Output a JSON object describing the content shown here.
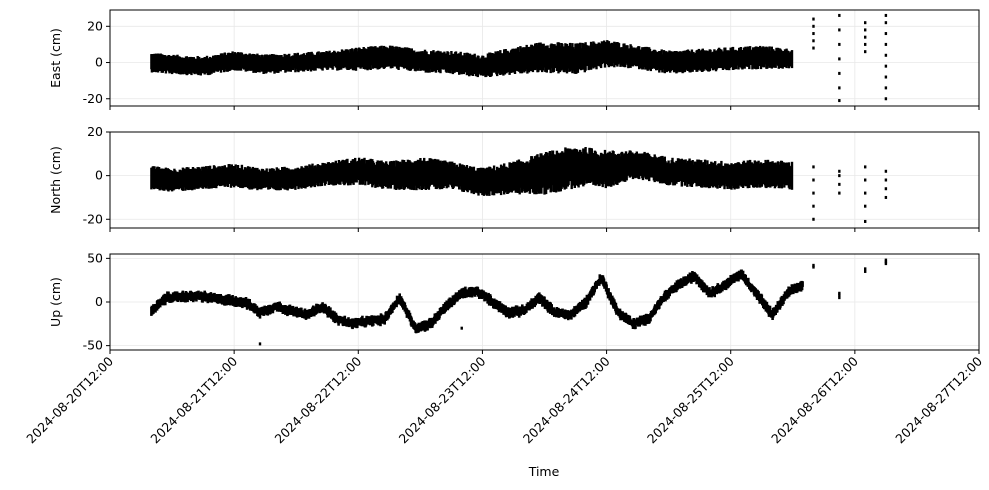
{
  "chart_data": {
    "type": "scatter",
    "xlabel": "Time",
    "x_ticks": [
      "2024-08-20T12:00",
      "2024-08-21T12:00",
      "2024-08-22T12:00",
      "2024-08-23T12:00",
      "2024-08-24T12:00",
      "2024-08-25T12:00",
      "2024-08-26T12:00",
      "2024-08-27T12:00"
    ],
    "xlim": [
      "2024-08-20T12:00",
      "2024-08-27T12:00"
    ],
    "grid": true,
    "marker_color": "#000000",
    "panels": [
      {
        "ylabel": "East (cm)",
        "ylim": [
          -24,
          29
        ],
        "yticks": [
          -20,
          0,
          20
        ],
        "series": [
          {
            "x": [
              "2024-08-20T20:00",
              "2024-08-21T00:00",
              "2024-08-21T06:00",
              "2024-08-21T12:00",
              "2024-08-21T18:00",
              "2024-08-22T00:00",
              "2024-08-22T06:00",
              "2024-08-22T12:00",
              "2024-08-22T18:00",
              "2024-08-23T00:00",
              "2024-08-23T06:00",
              "2024-08-23T12:00",
              "2024-08-23T18:00",
              "2024-08-24T00:00",
              "2024-08-24T06:00",
              "2024-08-24T12:00",
              "2024-08-24T18:00",
              "2024-08-25T00:00",
              "2024-08-25T06:00",
              "2024-08-25T12:00",
              "2024-08-25T18:00",
              "2024-08-26T00:00"
            ],
            "center": [
              0,
              -1,
              -2,
              1,
              -1,
              0,
              1,
              2,
              3,
              1,
              0,
              -2,
              1,
              3,
              2,
              5,
              3,
              0,
              1,
              2,
              3,
              2
            ],
            "spread": [
              5,
              5,
              5,
              5,
              5,
              5,
              5,
              6,
              6,
              6,
              6,
              6,
              7,
              8,
              8,
              7,
              6,
              6,
              6,
              6,
              6,
              5
            ]
          }
        ],
        "sparse_tail": [
          {
            "x": "2024-08-26T04:00",
            "y": [
              8,
              12,
              16,
              20,
              24
            ]
          },
          {
            "x": "2024-08-26T09:00",
            "y": [
              -21,
              -14,
              -6,
              2,
              10,
              18,
              26
            ]
          },
          {
            "x": "2024-08-26T14:00",
            "y": [
              6,
              10,
              14,
              18,
              22
            ]
          },
          {
            "x": "2024-08-26T18:00",
            "y": [
              -20,
              -14,
              -8,
              -2,
              4,
              10,
              16,
              22,
              26
            ]
          }
        ]
      },
      {
        "ylabel": "North (cm)",
        "ylim": [
          -24,
          20
        ],
        "yticks": [
          -20,
          0,
          20
        ],
        "series": [
          {
            "x": [
              "2024-08-20T20:00",
              "2024-08-21T00:00",
              "2024-08-21T06:00",
              "2024-08-21T12:00",
              "2024-08-21T18:00",
              "2024-08-22T00:00",
              "2024-08-22T06:00",
              "2024-08-22T12:00",
              "2024-08-22T18:00",
              "2024-08-23T00:00",
              "2024-08-23T06:00",
              "2024-08-23T12:00",
              "2024-08-23T18:00",
              "2024-08-24T00:00",
              "2024-08-24T06:00",
              "2024-08-24T12:00",
              "2024-08-24T18:00",
              "2024-08-25T00:00",
              "2024-08-25T06:00",
              "2024-08-25T12:00",
              "2024-08-25T18:00",
              "2024-08-26T00:00"
            ],
            "center": [
              -1,
              -2,
              -1,
              0,
              -2,
              -1,
              1,
              2,
              0,
              1,
              0,
              -3,
              -1,
              1,
              4,
              3,
              5,
              2,
              1,
              0,
              1,
              0
            ],
            "spread": [
              5,
              5,
              5,
              5,
              5,
              5,
              5,
              6,
              6,
              7,
              6,
              6,
              7,
              9,
              9,
              8,
              6,
              6,
              6,
              6,
              6,
              6
            ]
          }
        ],
        "sparse_tail": [
          {
            "x": "2024-08-26T04:00",
            "y": [
              -20,
              -14,
              -8,
              -2,
              4
            ]
          },
          {
            "x": "2024-08-26T09:00",
            "y": [
              -8,
              -4,
              0,
              2
            ]
          },
          {
            "x": "2024-08-26T14:00",
            "y": [
              -21,
              -14,
              -8,
              -2,
              4
            ]
          },
          {
            "x": "2024-08-26T18:00",
            "y": [
              -10,
              -6,
              -2,
              2
            ]
          }
        ]
      },
      {
        "ylabel": "Up (cm)",
        "ylim": [
          -55,
          55
        ],
        "yticks": [
          -50,
          0,
          50
        ],
        "line": {
          "x": [
            "2024-08-20T20:00",
            "2024-08-20T23:00",
            "2024-08-21T02:00",
            "2024-08-21T05:00",
            "2024-08-21T08:00",
            "2024-08-21T11:00",
            "2024-08-21T14:00",
            "2024-08-21T17:00",
            "2024-08-21T20:00",
            "2024-08-21T23:00",
            "2024-08-22T02:00",
            "2024-08-22T05:00",
            "2024-08-22T08:00",
            "2024-08-22T11:00",
            "2024-08-22T14:00",
            "2024-08-22T17:00",
            "2024-08-22T20:00",
            "2024-08-22T23:00",
            "2024-08-23T02:00",
            "2024-08-23T05:00",
            "2024-08-23T08:00",
            "2024-08-23T11:00",
            "2024-08-23T14:00",
            "2024-08-23T17:00",
            "2024-08-23T20:00",
            "2024-08-23T23:00",
            "2024-08-24T02:00",
            "2024-08-24T05:00",
            "2024-08-24T08:00",
            "2024-08-24T11:00",
            "2024-08-24T14:00",
            "2024-08-24T17:00",
            "2024-08-24T20:00",
            "2024-08-24T23:00",
            "2024-08-25T02:00",
            "2024-08-25T05:00",
            "2024-08-25T08:00",
            "2024-08-25T11:00",
            "2024-08-25T14:00",
            "2024-08-25T17:00",
            "2024-08-25T20:00",
            "2024-08-25T23:00",
            "2024-08-26T02:00"
          ],
          "y": [
            -10,
            5,
            6,
            7,
            4,
            2,
            0,
            -12,
            -5,
            -10,
            -15,
            -5,
            -20,
            -25,
            -22,
            -20,
            5,
            -30,
            -25,
            -5,
            10,
            12,
            0,
            -12,
            -10,
            5,
            -12,
            -15,
            0,
            28,
            -10,
            -25,
            -20,
            5,
            20,
            30,
            10,
            20,
            32,
            10,
            -15,
            10,
            20
          ]
        },
        "sparse_tail": [
          {
            "x": "2024-08-26T04:00",
            "y": [
              40,
              42
            ]
          },
          {
            "x": "2024-08-26T09:00",
            "y": [
              5,
              8,
              10
            ]
          },
          {
            "x": "2024-08-26T14:00",
            "y": [
              35,
              38
            ]
          },
          {
            "x": "2024-08-26T18:00",
            "y": [
              44,
              46,
              48
            ]
          }
        ],
        "outliers": [
          {
            "x": "2024-08-21T17:00",
            "y": -48
          },
          {
            "x": "2024-08-23T08:00",
            "y": -30
          }
        ]
      }
    ]
  }
}
